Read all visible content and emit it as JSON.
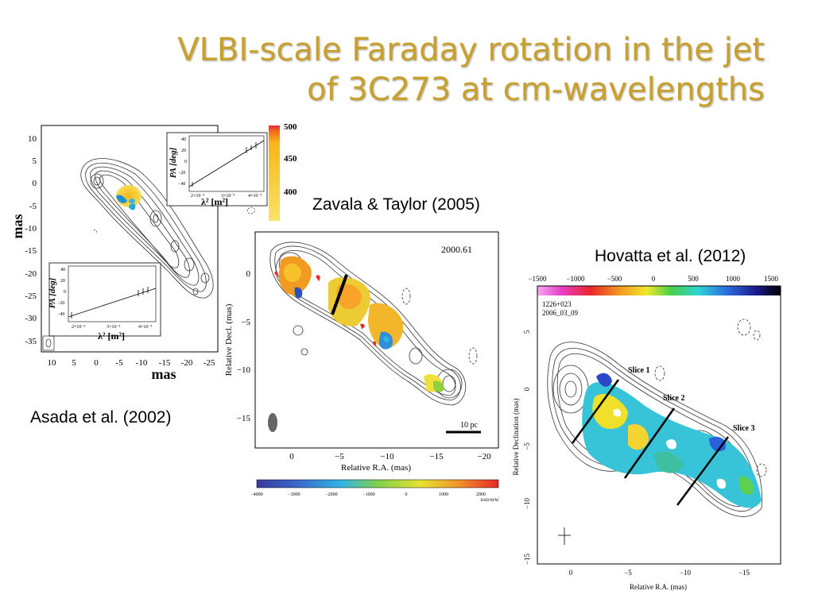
{
  "slide": {
    "title_line1": "VLBI-scale Faraday rotation in the jet",
    "title_line2": "of 3C273 at cm-wavelengths",
    "title_color": "#c8a02a"
  },
  "captions": {
    "asada": "Asada et al. (2002)",
    "zavala": "Zavala & Taylor (2005)",
    "hovatta": "Hovatta et al. (2012)"
  },
  "chart_data": [
    {
      "type": "heatmap",
      "xlabel": "mas",
      "ylabel": "mas",
      "x_ticks": [
        "10",
        "5",
        "0",
        "-5",
        "-10",
        "-15",
        "-20",
        "-25"
      ],
      "y_ticks": [
        "10",
        "5",
        "0",
        "-5",
        "-10",
        "-15",
        "-20",
        "-25",
        "-30",
        "-35"
      ],
      "colorbar_ticks": [
        "500",
        "450",
        "400"
      ],
      "insets": [
        {
          "ylabel": "PA [deg]",
          "xlabel": "λ² [m²]",
          "y_ticks": [
            "40",
            "20",
            "0",
            "−20",
            "−40"
          ],
          "x_ticks": [
            "2×10⁻³",
            "3×10⁻³",
            "4×10⁻³"
          ]
        },
        {
          "ylabel": "PA [deg]",
          "xlabel": "λ² [m²]",
          "y_ticks": [
            "40",
            "20",
            "0",
            "−20",
            "−40"
          ],
          "x_ticks": [
            "2×10⁻³",
            "3×10⁻³",
            "4×10⁻³"
          ]
        }
      ]
    },
    {
      "type": "heatmap",
      "epoch": "2000.61",
      "xlabel": "Relative R.A. (mas)",
      "ylabel": "Relative Decl. (mas)",
      "x_ticks": [
        "0",
        "−5",
        "−10",
        "−15",
        "−20"
      ],
      "y_ticks": [
        "0",
        "−5",
        "−10",
        "−15"
      ],
      "scale_bar": "10 pc",
      "colorbar_ticks": [
        "−4000",
        "−3000",
        "−2000",
        "−1000",
        "0",
        "1000",
        "2000"
      ],
      "colorbar_units": "RAD/M/M",
      "colorbar_range": [
        -4000,
        2500
      ]
    },
    {
      "type": "heatmap",
      "source": "1226+023",
      "date": "2006_03_09",
      "xlabel": "Relative R.A. (mas)",
      "ylabel": "Relative Declination (mas)",
      "x_ticks": [
        "0",
        "−5",
        "−10",
        "−15"
      ],
      "y_ticks": [
        "5",
        "0",
        "−5",
        "−10",
        "−15"
      ],
      "colorbar_ticks": [
        "−1500",
        "−1000",
        "−500",
        "0",
        "500",
        "1000",
        "1500"
      ],
      "colorbar_range": [
        -1500,
        1500
      ],
      "slices": [
        "Slice 1",
        "Slice 2",
        "Slice 3"
      ]
    }
  ]
}
